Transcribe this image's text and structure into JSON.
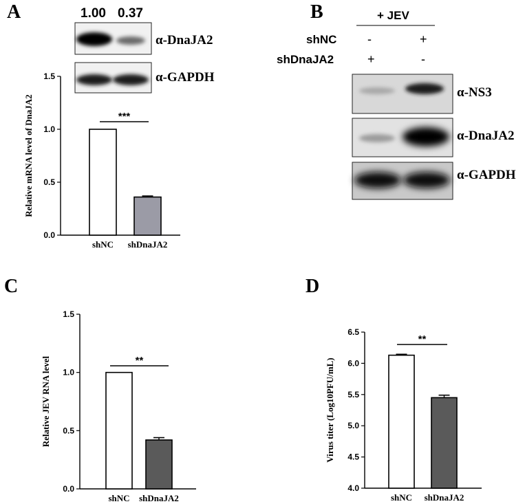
{
  "panels": {
    "A": "A",
    "B": "B",
    "C": "C",
    "D": "D"
  },
  "blotA": {
    "quant": [
      "1.00",
      "0.37"
    ],
    "labels": [
      "α-DnaJA2",
      "α-GAPDH"
    ]
  },
  "blotB": {
    "treatment": "+ JEV",
    "rows": [
      {
        "label": "shNC",
        "signs": [
          "-",
          "+"
        ]
      },
      {
        "label": "shDnaJA2",
        "signs": [
          "+",
          "-"
        ]
      }
    ],
    "labels": [
      "α-NS3",
      "α-DnaJA2",
      "α-GAPDH"
    ]
  },
  "colors": {
    "white_bar": "#ffffff",
    "grey_bar": "#9b9ba6",
    "dark_bar": "#5a5a5a",
    "line": "#000000"
  },
  "chart_data": [
    {
      "panel": "A",
      "type": "bar",
      "categories": [
        "shNC",
        "shDnaJA2"
      ],
      "values": [
        1.0,
        0.36
      ],
      "errors": [
        0.0,
        0.01
      ],
      "ylabel": "Relative mRNA level of DnaJA2",
      "ylim": [
        0,
        1.5
      ],
      "yticks": [
        "0.0",
        "0.5",
        "1.0",
        "1.5"
      ],
      "significance": "***",
      "bar_colors": [
        "#ffffff",
        "#9b9ba6"
      ]
    },
    {
      "panel": "C",
      "type": "bar",
      "categories": [
        "shNC",
        "shDnaJA2"
      ],
      "values": [
        1.0,
        0.42
      ],
      "errors": [
        0.0,
        0.02
      ],
      "ylabel": "Relative JEV RNA level",
      "ylim": [
        0,
        1.5
      ],
      "yticks": [
        "0.0",
        "0.5",
        "1.0",
        "1.5"
      ],
      "significance": "**",
      "bar_colors": [
        "#ffffff",
        "#5a5a5a"
      ]
    },
    {
      "panel": "D",
      "type": "bar",
      "categories": [
        "shNC",
        "shDnaJA2"
      ],
      "values": [
        6.13,
        5.45
      ],
      "errors": [
        0.015,
        0.04
      ],
      "ylabel": "Virus titer (Log10PFU/mL)",
      "ylim": [
        4.0,
        6.5
      ],
      "yticks": [
        "4.0",
        "4.5",
        "5.0",
        "5.5",
        "6.0",
        "6.5"
      ],
      "significance": "**",
      "bar_colors": [
        "#ffffff",
        "#5a5a5a"
      ]
    }
  ]
}
